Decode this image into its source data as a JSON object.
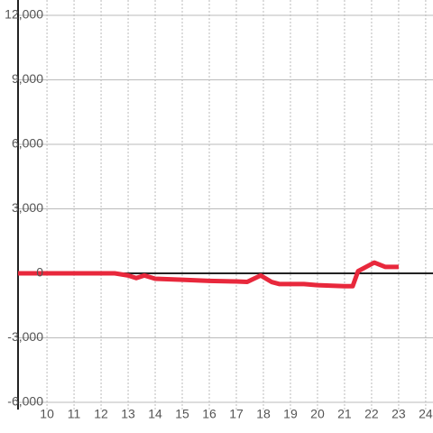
{
  "chart_data": {
    "type": "line",
    "x": [
      8.93,
      12.5,
      13.0,
      13.3,
      13.6,
      14.0,
      15.0,
      16.0,
      17.0,
      17.4,
      17.9,
      18.3,
      18.6,
      19.5,
      20.0,
      21.0,
      21.3,
      21.5,
      21.8,
      22.1,
      22.5,
      23.0
    ],
    "series": [
      {
        "color": "#e8283c",
        "values": [
          0,
          0,
          -100,
          -220,
          -100,
          -250,
          -300,
          -350,
          -380,
          -400,
          -100,
          -400,
          -500,
          -500,
          -550,
          -600,
          -600,
          100,
          300,
          500,
          300,
          300
        ]
      }
    ],
    "xlim": [
      8.93,
      24.27
    ],
    "xticks": [
      10,
      11,
      12,
      13,
      14,
      15,
      16,
      17,
      18,
      19,
      20,
      21,
      22,
      23,
      24
    ],
    "ylim": [
      -6000,
      12000
    ],
    "yticks": [
      {
        "value": -6000,
        "label": "-6,000"
      },
      {
        "value": -3000,
        "label": "-3,000"
      },
      0,
      {
        "value": 3000,
        "label": "3,000"
      },
      {
        "value": 6000,
        "label": "6,000"
      },
      {
        "value": 9000,
        "label": "9,000"
      },
      {
        "value": 12000,
        "label": "12,000"
      }
    ],
    "grid": true
  }
}
